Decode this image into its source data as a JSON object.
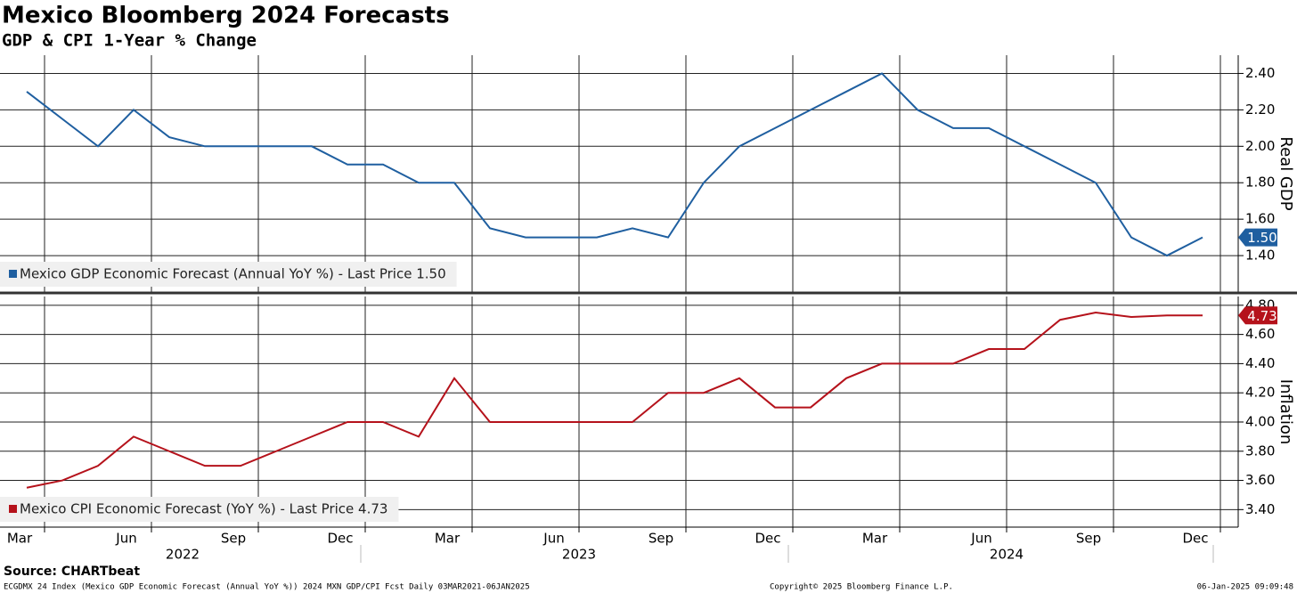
{
  "title": "Mexico Bloomberg 2024 Forecasts",
  "subtitle": "GDP & CPI 1-Year % Change",
  "source": "Source: CHARTbeat",
  "footer_left": "ECGDMX 24 Index (Mexico GDP Economic Forecast (Annual YoY %)) 2024 MXN GDP/CPI Fcst  Daily 03MAR2021-06JAN2025",
  "footer_center": "Copyright© 2025 Bloomberg Finance L.P.",
  "footer_right": "06-Jan-2025 09:09:48",
  "x_axis": {
    "xticks": [
      {
        "value": "2022-03",
        "label": "Mar"
      },
      {
        "value": "2022-06",
        "label": "Jun"
      },
      {
        "value": "2022-09",
        "label": "Sep"
      },
      {
        "value": "2022-12",
        "label": "Dec"
      },
      {
        "value": "2023-03",
        "label": "Mar"
      },
      {
        "value": "2023-06",
        "label": "Jun"
      },
      {
        "value": "2023-09",
        "label": "Sep"
      },
      {
        "value": "2023-12",
        "label": "Dec"
      },
      {
        "value": "2024-03",
        "label": "Mar"
      },
      {
        "value": "2024-06",
        "label": "Jun"
      },
      {
        "value": "2024-09",
        "label": "Sep"
      },
      {
        "value": "2024-12",
        "label": "Dec"
      }
    ],
    "years": [
      "2022",
      "2023",
      "2024"
    ]
  },
  "chart_data": [
    {
      "type": "line",
      "y_label": "Real GDP",
      "grid": true,
      "x": [
        "2022-03",
        "2022-04",
        "2022-05",
        "2022-06",
        "2022-07",
        "2022-08",
        "2022-09",
        "2022-10",
        "2022-11",
        "2022-12",
        "2023-01",
        "2023-02",
        "2023-03",
        "2023-04",
        "2023-05",
        "2023-06",
        "2023-07",
        "2023-08",
        "2023-09",
        "2023-10",
        "2023-11",
        "2023-12",
        "2024-01",
        "2024-02",
        "2024-03",
        "2024-04",
        "2024-05",
        "2024-06",
        "2024-07",
        "2024-08",
        "2024-09",
        "2024-10",
        "2024-11",
        "2024-12"
      ],
      "ylim": [
        1.2,
        2.5
      ],
      "yticks": [
        {
          "value": 1.4,
          "label": "1.40"
        },
        {
          "value": 1.6,
          "label": "1.60"
        },
        {
          "value": 1.8,
          "label": "1.80"
        },
        {
          "value": 2.0,
          "label": "2.00"
        },
        {
          "value": 2.2,
          "label": "2.20"
        },
        {
          "value": 2.4,
          "label": "2.40"
        }
      ],
      "series": [
        {
          "name": "Mexico GDP Economic Forecast (Annual YoY %) - Last Price 1.50",
          "color": "#1f5fa0",
          "values": [
            2.3,
            2.15,
            2.0,
            2.2,
            2.05,
            2.0,
            2.0,
            2.0,
            2.0,
            1.9,
            1.9,
            1.8,
            1.8,
            1.55,
            1.5,
            1.5,
            1.5,
            1.55,
            1.5,
            1.8,
            2.0,
            2.1,
            2.2,
            2.3,
            2.4,
            2.2,
            2.1,
            2.1,
            2.0,
            1.9,
            1.8,
            1.5,
            1.4,
            1.5
          ],
          "value_labels": [
            null,
            null,
            null,
            null,
            null,
            null,
            null,
            null,
            null,
            null,
            null,
            null,
            null,
            null,
            null,
            null,
            null,
            null,
            null,
            null,
            null,
            null,
            null,
            null,
            null,
            null,
            null,
            null,
            null,
            null,
            null,
            null,
            null,
            "1.50"
          ]
        }
      ]
    },
    {
      "type": "line",
      "y_label": "Inflation",
      "grid": true,
      "x": [
        "2022-03",
        "2022-04",
        "2022-05",
        "2022-06",
        "2022-07",
        "2022-08",
        "2022-09",
        "2022-10",
        "2022-11",
        "2022-12",
        "2023-01",
        "2023-02",
        "2023-03",
        "2023-04",
        "2023-05",
        "2023-06",
        "2023-07",
        "2023-08",
        "2023-09",
        "2023-10",
        "2023-11",
        "2023-12",
        "2024-01",
        "2024-02",
        "2024-03",
        "2024-04",
        "2024-05",
        "2024-06",
        "2024-07",
        "2024-08",
        "2024-09",
        "2024-10",
        "2024-11",
        "2024-12"
      ],
      "ylim": [
        3.28,
        4.86
      ],
      "yticks": [
        {
          "value": 3.4,
          "label": "3.40"
        },
        {
          "value": 3.6,
          "label": "3.60"
        },
        {
          "value": 3.8,
          "label": "3.80"
        },
        {
          "value": 4.0,
          "label": "4.00"
        },
        {
          "value": 4.2,
          "label": "4.20"
        },
        {
          "value": 4.4,
          "label": "4.40"
        },
        {
          "value": 4.6,
          "label": "4.60"
        },
        {
          "value": 4.8,
          "label": "4.80"
        }
      ],
      "series": [
        {
          "name": "Mexico CPI Economic Forecast (YoY %) - Last Price 4.73",
          "color": "#b5121b",
          "values": [
            3.55,
            3.6,
            3.7,
            3.9,
            3.8,
            3.7,
            3.7,
            3.8,
            3.9,
            4.0,
            4.0,
            3.9,
            4.3,
            4.0,
            4.0,
            4.0,
            4.0,
            4.0,
            4.2,
            4.2,
            4.3,
            4.1,
            4.1,
            4.3,
            4.4,
            4.4,
            4.4,
            4.5,
            4.5,
            4.7,
            4.75,
            4.72,
            4.73,
            4.73
          ],
          "value_labels": [
            null,
            null,
            null,
            null,
            null,
            null,
            null,
            null,
            null,
            null,
            null,
            null,
            null,
            null,
            null,
            null,
            null,
            null,
            null,
            null,
            null,
            null,
            null,
            null,
            null,
            null,
            null,
            null,
            null,
            null,
            null,
            null,
            null,
            "4.73"
          ]
        }
      ]
    }
  ]
}
